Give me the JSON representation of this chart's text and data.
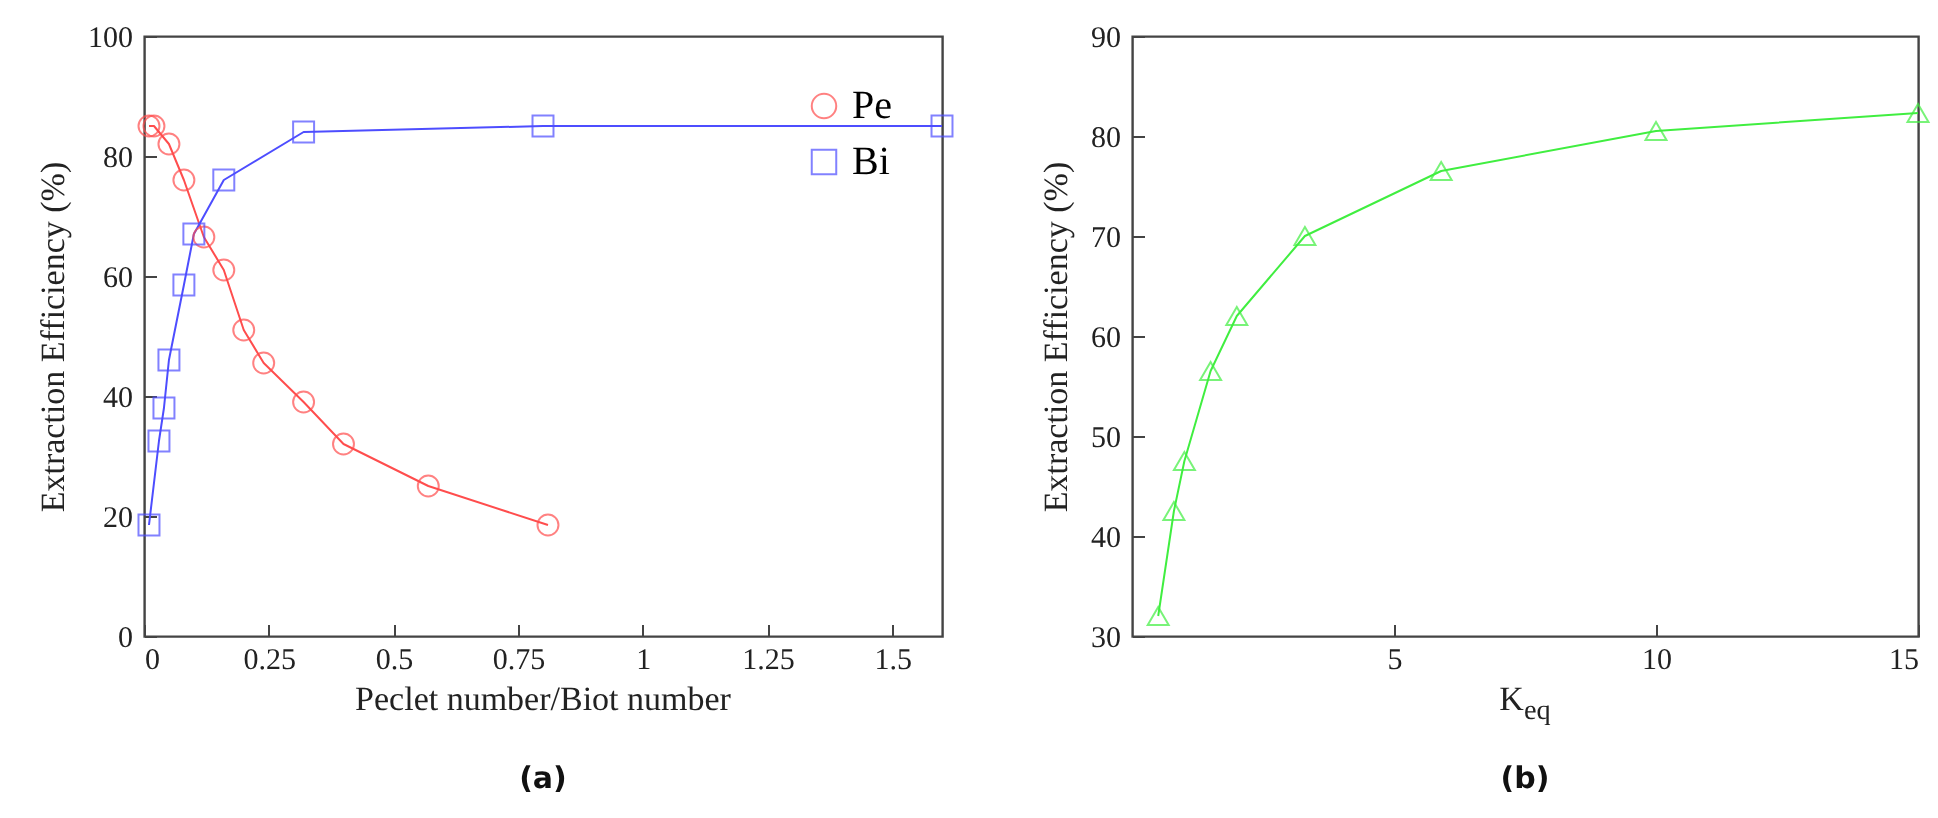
{
  "chart_data": [
    {
      "type": "line",
      "xlabel": "Peclet number/Biot number",
      "ylabel": "Extraction Efficiency (%)",
      "annotations": [
        "(a)"
      ],
      "xlim": [
        0,
        1.6
      ],
      "xticks": [
        0,
        0.25,
        0.5,
        0.75,
        1,
        1.25,
        1.5
      ],
      "ylim": [
        0,
        100
      ],
      "yticks": [
        0,
        20,
        40,
        60,
        80,
        100
      ],
      "grid": false,
      "legend": "top right",
      "series": [
        {
          "name": "Pe",
          "color": "#ff4d4d",
          "marker": "circle",
          "x": [
            0.01,
            0.02,
            0.05,
            0.08,
            0.12,
            0.16,
            0.2,
            0.24,
            0.32,
            0.4,
            0.57,
            0.81
          ],
          "values": [
            85,
            85,
            82,
            76,
            66.5,
            61,
            51,
            45.5,
            39,
            32,
            25,
            18.5
          ]
        },
        {
          "name": "Bi",
          "color": "#4d4dff",
          "marker": "square",
          "x": [
            0.01,
            0.03,
            0.04,
            0.05,
            0.08,
            0.1,
            0.16,
            0.32,
            0.8,
            1.6
          ],
          "values": [
            18.5,
            32.5,
            38,
            46,
            58.5,
            67,
            76,
            84,
            85,
            85
          ]
        }
      ]
    },
    {
      "type": "line",
      "xlabel": "K$_{eq}$",
      "ylabel": "Extraction Efficiency (%)",
      "annotations": [
        "(b)"
      ],
      "xlim": [
        0,
        15
      ],
      "xticks": [
        5,
        10,
        15
      ],
      "ylim": [
        30,
        90
      ],
      "yticks": [
        30,
        40,
        50,
        60,
        70,
        80,
        90
      ],
      "grid": false,
      "series": [
        {
          "color": "#40ee40",
          "marker": "triangle",
          "x": [
            0.5,
            0.8,
            1,
            1.5,
            2,
            3.3,
            5.9,
            10,
            15
          ],
          "values": [
            32,
            42.5,
            47.5,
            56.5,
            62,
            70,
            76.5,
            80.5,
            82.3
          ]
        }
      ]
    }
  ]
}
